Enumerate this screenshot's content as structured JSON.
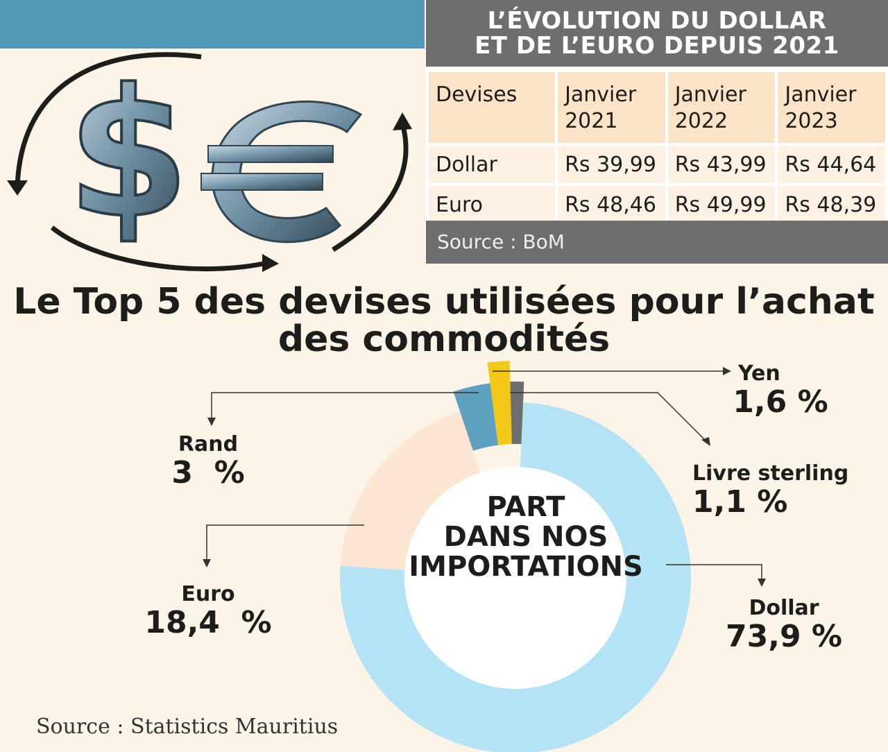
{
  "table": {
    "title_line1": "L’ÉVOLUTION DU DOLLAR",
    "title_line2": "ET DE L’EURO DEPUIS 2021",
    "header": [
      "Devises",
      "Janvier\n2021",
      "Janvier\n2022",
      "Janvier\n2023"
    ],
    "rows": [
      {
        "devise": "Dollar",
        "values": [
          "Rs 39,99",
          "Rs 43,99",
          "Rs 44,64"
        ]
      },
      {
        "devise": "Euro",
        "values": [
          "Rs 48,46",
          "Rs 49,99",
          "Rs 48,39"
        ]
      }
    ],
    "source": "Source : BoM"
  },
  "headline_line1": "Le Top 5 des devises utilisées pour l’achat",
  "headline_line2": "des commodités",
  "center_line1": "PART",
  "center_line2": "DANS NOS",
  "center_line3": "IMPORTATIONS",
  "labels": {
    "yen": {
      "name": "Yen",
      "pct": "1,6 %"
    },
    "rand": {
      "name": "Rand",
      "pct": "3  %"
    },
    "livre": {
      "name": "Livre sterling",
      "pct": "1,1 %"
    },
    "euro": {
      "name": "Euro",
      "pct": "18,4  %"
    },
    "dollar": {
      "name": "Dollar",
      "pct": "73,9 %"
    }
  },
  "source": "Source : Statistics Mauritius",
  "chart_data": {
    "type": "pie",
    "categories": [
      "Dollar",
      "Euro",
      "Rand",
      "Yen",
      "Livre sterling"
    ],
    "values": [
      73.9,
      18.4,
      3,
      1.6,
      1.1
    ],
    "colors": [
      "#b5e3f6",
      "#fce6d1",
      "#5ea0bf",
      "#f3c816",
      "#6d6e70"
    ]
  }
}
